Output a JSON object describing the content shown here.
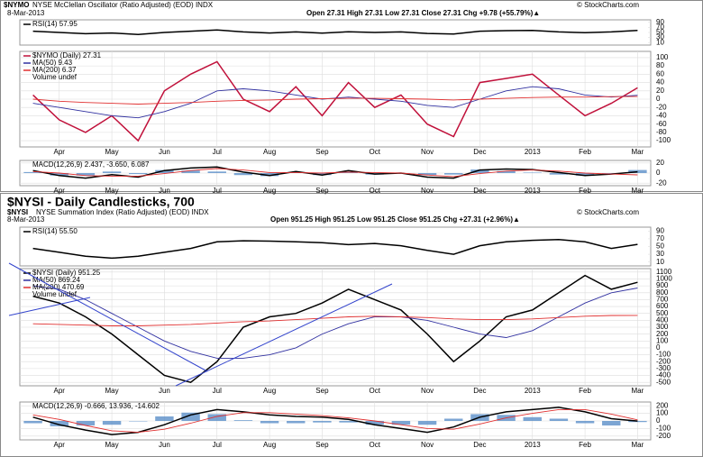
{
  "headers": [
    {
      "symbol": "$NYMO",
      "name": "NYSE McClellan Oscillator (Ratio Adjusted) (EOD) INDX",
      "date": "8-Mar-2013",
      "quote": "Open 27.31  High 27.31  Low 27.31  Close 27.31  Chg +9.78 (+55.79%)▲",
      "credit": "© StockCharts.com"
    },
    {
      "title": "$NYSI - Daily Candlesticks, 700",
      "symbol": "$NYSI",
      "name": "NYSE Summation Index (Ratio Adjusted) (EOD) INDX",
      "date": "8-Mar-2013",
      "quote": "Open 951.25  High 951.25  Low 951.25  Close 951.25  Chg +27.31 (+2.96%)▲",
      "credit": "© StockCharts.com"
    }
  ],
  "chart_data": [
    {
      "type": "line",
      "ylim": [
        0,
        100
      ],
      "yticks": [
        10,
        30,
        50,
        70,
        90
      ],
      "series": [
        {
          "name": "RSI(14) 57.95",
          "color": "#000000",
          "values": [
            55,
            50,
            45,
            48,
            42,
            50,
            55,
            60,
            52,
            48,
            52,
            47,
            53,
            50,
            52,
            46,
            44,
            55,
            57,
            58,
            52,
            49,
            52,
            57.95
          ]
        }
      ]
    },
    {
      "type": "line",
      "ylim": [
        -115,
        115
      ],
      "yticks": [
        -100,
        -80,
        -60,
        -40,
        -20,
        0,
        20,
        40,
        60,
        80,
        100
      ],
      "grid": true,
      "categories": [
        null,
        "Apr",
        null,
        "May",
        null,
        "Jun",
        null,
        "Jul",
        null,
        "Aug",
        null,
        "Sep",
        null,
        "Oct",
        null,
        "Nov",
        null,
        "Dec",
        null,
        "2013",
        null,
        "Feb",
        null,
        "Mar"
      ],
      "note": "Volume undef",
      "series": [
        {
          "name": "$NYMO (Daily) 27.31",
          "color": "#c0103a",
          "values": [
            10,
            -50,
            -80,
            -40,
            -100,
            20,
            60,
            90,
            0,
            -30,
            30,
            -40,
            40,
            -20,
            10,
            -60,
            -90,
            40,
            50,
            60,
            10,
            -40,
            -10,
            27.31
          ]
        },
        {
          "name": "MA(50) 9.43",
          "color": "#3030a0",
          "values": [
            -10,
            -20,
            -30,
            -40,
            -45,
            -30,
            -10,
            20,
            25,
            20,
            10,
            0,
            5,
            0,
            -5,
            -15,
            -20,
            0,
            20,
            30,
            25,
            10,
            5,
            9.43
          ]
        },
        {
          "name": "MA(200) 6.37",
          "color": "#e03030",
          "values": [
            0,
            -5,
            -8,
            -10,
            -12,
            -10,
            -8,
            -5,
            -3,
            -2,
            0,
            1,
            2,
            2,
            1,
            0,
            -2,
            0,
            2,
            4,
            5,
            5,
            6,
            6.37
          ]
        }
      ]
    },
    {
      "type": "macd",
      "title": "MACD(12,26,9) 2.437, -3.650, 6.087",
      "ylim": [
        -25,
        25
      ],
      "yticks": [
        -20,
        0,
        20
      ],
      "grid": true,
      "categories": [
        null,
        "Apr",
        null,
        "May",
        null,
        "Jun",
        null,
        "Jul",
        null,
        "Aug",
        null,
        "Sep",
        null,
        "Oct",
        null,
        "Nov",
        null,
        "Dec",
        null,
        "2013",
        null,
        "Feb",
        null,
        "Mar"
      ],
      "series": [
        {
          "color": "#000000",
          "values": [
            5,
            -5,
            -10,
            -3,
            -8,
            5,
            10,
            12,
            2,
            -5,
            3,
            -4,
            5,
            -2,
            0,
            -8,
            -10,
            6,
            8,
            7,
            1,
            -5,
            -2,
            2.437
          ]
        },
        {
          "color": "#e03030",
          "values": [
            3,
            0,
            -5,
            -6,
            -6,
            -1,
            5,
            9,
            6,
            1,
            1,
            0,
            2,
            1,
            0,
            -4,
            -7,
            -1,
            4,
            6,
            4,
            0,
            -2,
            -3.65
          ]
        },
        {
          "color": "#5b8fc8",
          "kind": "bar",
          "values": [
            2,
            -5,
            -5,
            3,
            -2,
            6,
            5,
            3,
            -4,
            -6,
            2,
            -4,
            3,
            -3,
            0,
            -4,
            -3,
            7,
            4,
            1,
            -3,
            -5,
            0,
            6.087
          ]
        }
      ]
    },
    {
      "type": "line",
      "ylim": [
        0,
        100
      ],
      "yticks": [
        10,
        30,
        50,
        70,
        90
      ],
      "series": [
        {
          "name": "RSI(14) 55.50",
          "color": "#000000",
          "values": [
            45,
            35,
            25,
            20,
            25,
            35,
            45,
            62,
            65,
            64,
            62,
            60,
            55,
            58,
            52,
            40,
            30,
            52,
            62,
            66,
            68,
            62,
            45,
            55.5
          ]
        }
      ]
    },
    {
      "type": "line",
      "ylim": [
        -550,
        1150
      ],
      "yticks": [
        -500,
        -400,
        -300,
        -200,
        -100,
        0,
        100,
        200,
        300,
        400,
        500,
        600,
        700,
        800,
        900,
        1000,
        1100
      ],
      "grid": true,
      "categories": [
        null,
        "Apr",
        null,
        "May",
        null,
        "Jun",
        null,
        "Jul",
        null,
        "Aug",
        null,
        "Sep",
        null,
        "Oct",
        null,
        "Nov",
        null,
        "Dec",
        null,
        "2013",
        null,
        "Feb",
        null,
        "Mar"
      ],
      "note": "Volume undef",
      "series": [
        {
          "name": "$NYSI (Daily) 951.25",
          "color": "#000000",
          "values": [
            750,
            650,
            450,
            200,
            -100,
            -400,
            -500,
            -200,
            300,
            450,
            500,
            650,
            850,
            700,
            550,
            200,
            -200,
            100,
            450,
            550,
            800,
            1050,
            850,
            951.25
          ]
        },
        {
          "name": "MA(50) 869.24",
          "color": "#3030a0",
          "values": [
            900,
            850,
            700,
            500,
            300,
            100,
            -50,
            -150,
            -150,
            -100,
            0,
            200,
            350,
            450,
            450,
            400,
            300,
            200,
            150,
            250,
            450,
            650,
            800,
            869.24
          ]
        },
        {
          "name": "MA(200) 470.69",
          "color": "#e03030",
          "values": [
            350,
            340,
            330,
            320,
            320,
            330,
            340,
            360,
            380,
            390,
            410,
            430,
            450,
            460,
            450,
            440,
            420,
            410,
            410,
            420,
            440,
            460,
            470,
            470.69
          ]
        }
      ]
    },
    {
      "type": "macd",
      "title": "MACD(12,26,9) -0.666, 13.936, -14.602",
      "ylim": [
        -250,
        250
      ],
      "yticks": [
        -200,
        -100,
        0,
        100,
        200
      ],
      "grid": true,
      "categories": [
        null,
        "Apr",
        null,
        "May",
        null,
        "Jun",
        null,
        "Jul",
        null,
        "Aug",
        null,
        "Sep",
        null,
        "Oct",
        null,
        "Nov",
        null,
        "Dec",
        null,
        "2013",
        null,
        "Feb",
        null,
        "Mar"
      ],
      "series": [
        {
          "color": "#000000",
          "values": [
            50,
            -50,
            -120,
            -180,
            -150,
            -50,
            80,
            150,
            120,
            80,
            60,
            50,
            20,
            -50,
            -100,
            -150,
            -80,
            50,
            120,
            150,
            180,
            120,
            30,
            -0.666
          ]
        },
        {
          "color": "#e03030",
          "values": [
            80,
            20,
            -60,
            -130,
            -150,
            -110,
            -30,
            60,
            110,
            110,
            90,
            70,
            40,
            0,
            -50,
            -100,
            -110,
            -40,
            40,
            100,
            150,
            150,
            90,
            13.936
          ]
        },
        {
          "color": "#5b8fc8",
          "kind": "bar",
          "values": [
            -30,
            -70,
            -60,
            -50,
            0,
            60,
            110,
            90,
            10,
            -30,
            -30,
            -20,
            -20,
            -50,
            -50,
            -50,
            30,
            90,
            80,
            50,
            30,
            -30,
            -60,
            -14.602
          ]
        }
      ]
    }
  ]
}
